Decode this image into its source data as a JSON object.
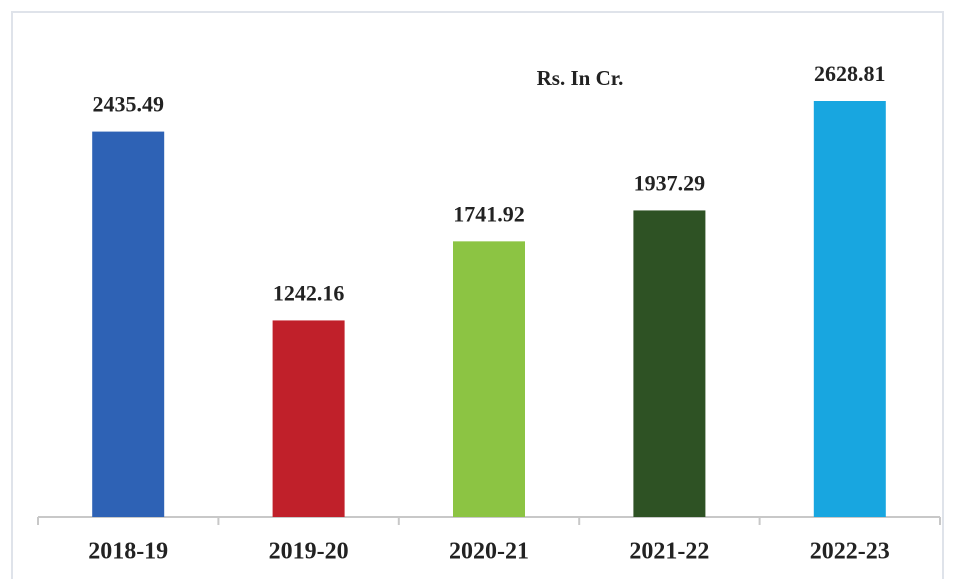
{
  "chart_data": {
    "type": "bar",
    "subtitle": "Rs. In Cr.",
    "categories": [
      "2018-19",
      "2019-20",
      "2020-21",
      "2021-22",
      "2022-23"
    ],
    "values": [
      2435.49,
      1242.16,
      1741.92,
      1937.29,
      2628.81
    ],
    "colors": [
      "#2e62b5",
      "#c0202a",
      "#8cc443",
      "#2e5224",
      "#18a6e0"
    ]
  }
}
